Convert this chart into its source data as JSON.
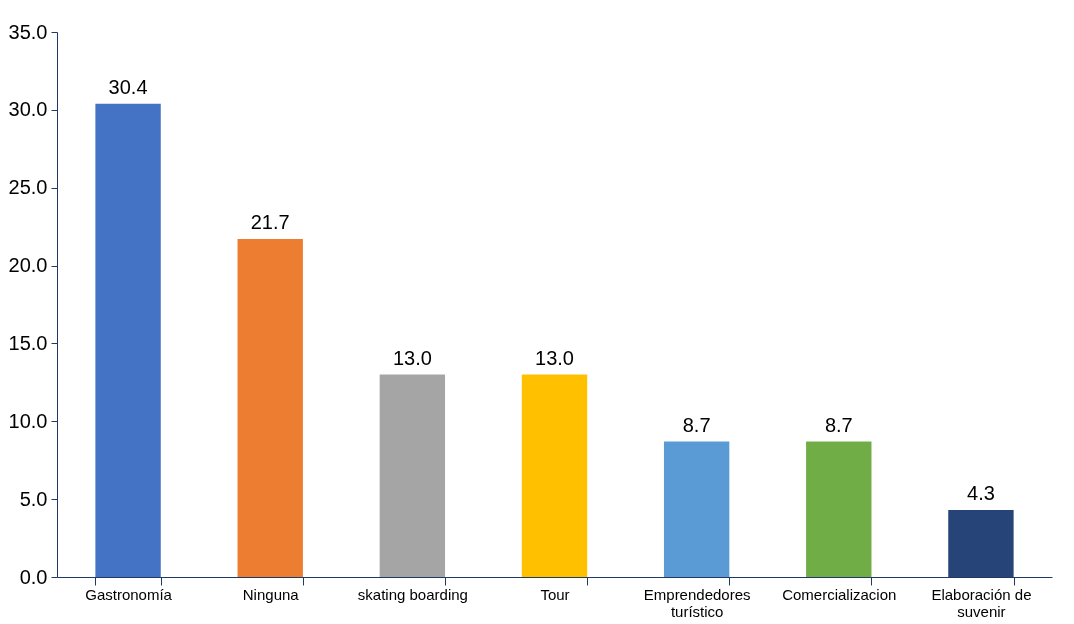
{
  "chart_data": {
    "type": "bar",
    "categories": [
      "Gastronomía",
      "Ninguna",
      "skating boarding",
      "Tour",
      "Emprendedores turístico",
      "Comercializacion",
      "Elaboración de suvenir"
    ],
    "values": [
      30.4,
      21.7,
      13.0,
      13.0,
      8.7,
      8.7,
      4.3
    ],
    "colors": [
      "#4472c4",
      "#ed7d31",
      "#a5a5a5",
      "#ffc000",
      "#5b9bd5",
      "#70ad47",
      "#264478"
    ],
    "value_labels": [
      "30.4",
      "21.7",
      "13.0",
      "13.0",
      "8.7",
      "8.7",
      "4.3"
    ],
    "ylim": [
      0,
      35
    ],
    "yticks": [
      {
        "value": 0,
        "label": "0.0"
      },
      {
        "value": 5,
        "label": "5.0"
      },
      {
        "value": 10,
        "label": "10.0"
      },
      {
        "value": 15,
        "label": "15.0"
      },
      {
        "value": 20,
        "label": "20.0"
      },
      {
        "value": 25,
        "label": "25.0"
      },
      {
        "value": 30,
        "label": "30.0"
      },
      {
        "value": 35,
        "label": "35.0"
      }
    ],
    "grid": false,
    "legend": false
  }
}
